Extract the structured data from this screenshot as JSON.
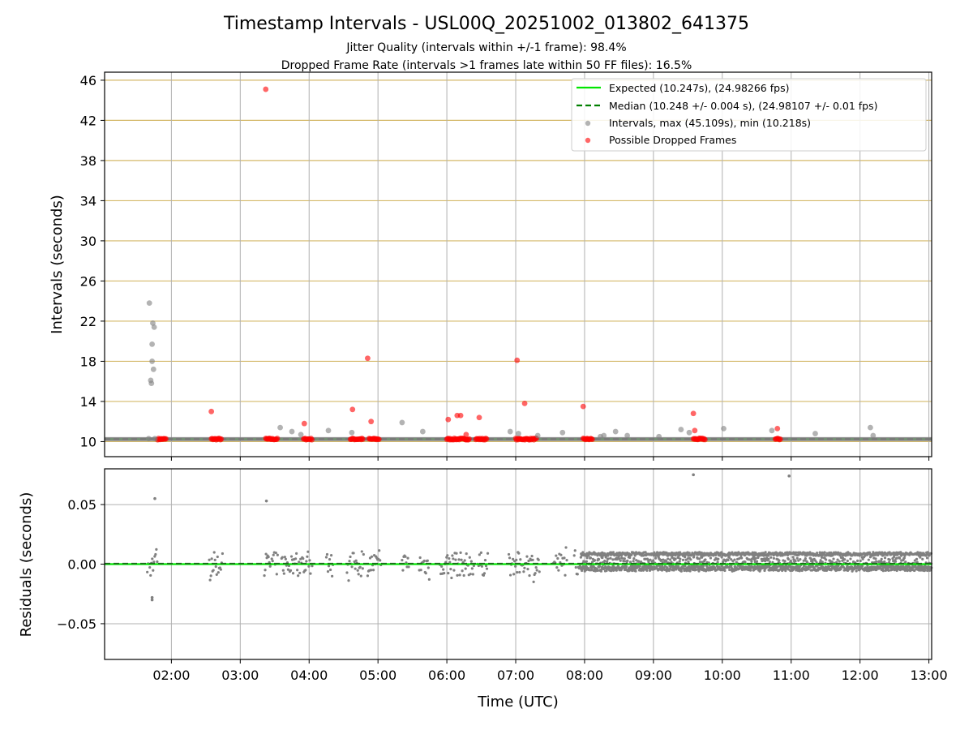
{
  "figure": {
    "title": "Timestamp Intervals - USL00Q_20251002_013802_641375",
    "subtitle_1": "Jitter Quality (intervals within +/-1 frame): 98.4%",
    "subtitle_2": "Dropped Frame Rate (intervals >1 frames late within 50 FF files): 16.5%"
  },
  "colors": {
    "expected": "#00e600",
    "median": "#007f00",
    "intervals": "#808080",
    "dropped": "#ff0000",
    "hgrid_top": "#d4b96a",
    "grid": "#b0b0b0"
  },
  "chart_data": [
    {
      "type": "scatter",
      "panel": "intervals",
      "xlabel": "",
      "ylabel": "Intervals (seconds)",
      "ylim": [
        8.5,
        46.8
      ],
      "yticks": [
        10,
        14,
        18,
        22,
        26,
        30,
        34,
        38,
        42,
        46
      ],
      "xlim_hours": [
        1.03,
        13.04
      ],
      "grid": true,
      "legend_position": "top-right",
      "legend": [
        "Expected (10.247s), (24.98266 fps)",
        "Median (10.248 +/- 0.004 s), (24.98107 +/- 0.01 fps)",
        "Intervals, max (45.109s), min (10.218s)",
        "Possible Dropped Frames"
      ],
      "series": [
        {
          "name": "Expected (10.247s), (24.98266 fps)",
          "style": "line",
          "value": 10.247
        },
        {
          "name": "Median (10.248 +/- 0.004 s), (24.98107 +/- 0.01 fps)",
          "style": "dashed",
          "value": 10.248
        },
        {
          "name": "Intervals, max (45.109s), min (10.218s)",
          "style": "points",
          "x_hours": [
            1.68,
            1.7,
            1.71,
            1.72,
            1.72,
            1.73,
            1.74,
            1.75,
            1.76,
            1.67,
            3.58,
            3.75,
            3.88,
            4.28,
            4.62,
            5.35,
            5.65,
            6.92,
            7.04,
            7.32,
            7.68,
            8.23,
            8.28,
            8.45,
            8.62,
            9.08,
            9.4,
            9.52,
            10.02,
            10.72,
            11.35,
            12.15,
            12.19
          ],
          "y": [
            23.8,
            16.1,
            15.8,
            18.0,
            19.7,
            21.8,
            17.2,
            21.4,
            10.3,
            10.3,
            11.4,
            11.0,
            10.7,
            11.1,
            10.9,
            11.9,
            11.0,
            11.0,
            10.8,
            10.6,
            10.9,
            10.5,
            10.6,
            11.0,
            10.6,
            10.5,
            11.2,
            10.9,
            11.3,
            11.1,
            10.8,
            11.4,
            10.6
          ]
        },
        {
          "name": "Possible Dropped Frames",
          "style": "points",
          "x_hours": [
            2.58,
            3.37,
            3.93,
            4.63,
            4.85,
            4.9,
            6.02,
            6.15,
            6.2,
            6.28,
            6.47,
            7.02,
            7.13,
            7.98,
            9.58,
            9.6,
            10.8
          ],
          "y": [
            13.0,
            45.1,
            11.8,
            13.2,
            18.3,
            12.0,
            12.2,
            12.6,
            12.6,
            10.7,
            12.4,
            18.1,
            13.8,
            13.5,
            12.8,
            11.1,
            11.3
          ]
        }
      ]
    },
    {
      "type": "scatter",
      "panel": "residuals",
      "xlabel": "Time (UTC)",
      "ylabel": "Residuals (seconds)",
      "ylim": [
        -0.08,
        0.08
      ],
      "yticks": [
        -0.05,
        0.0,
        0.05
      ],
      "ytick_labels": [
        "−0.05",
        "0.00",
        "0.05"
      ],
      "xticks_hours": [
        2,
        3,
        4,
        5,
        6,
        7,
        8,
        9,
        10,
        11,
        12,
        13
      ],
      "xtick_labels": [
        "02:00",
        "03:00",
        "04:00",
        "05:00",
        "06:00",
        "07:00",
        "08:00",
        "09:00",
        "10:00",
        "11:00",
        "12:00",
        "13:00"
      ],
      "grid": true,
      "series": [
        {
          "name": "Residuals",
          "style": "points",
          "x_hours": [
            1.76,
            3.38,
            9.58,
            10.97,
            1.72,
            1.72
          ],
          "y": [
            0.055,
            0.053,
            0.075,
            0.074,
            -0.028,
            -0.03
          ]
        }
      ]
    }
  ]
}
